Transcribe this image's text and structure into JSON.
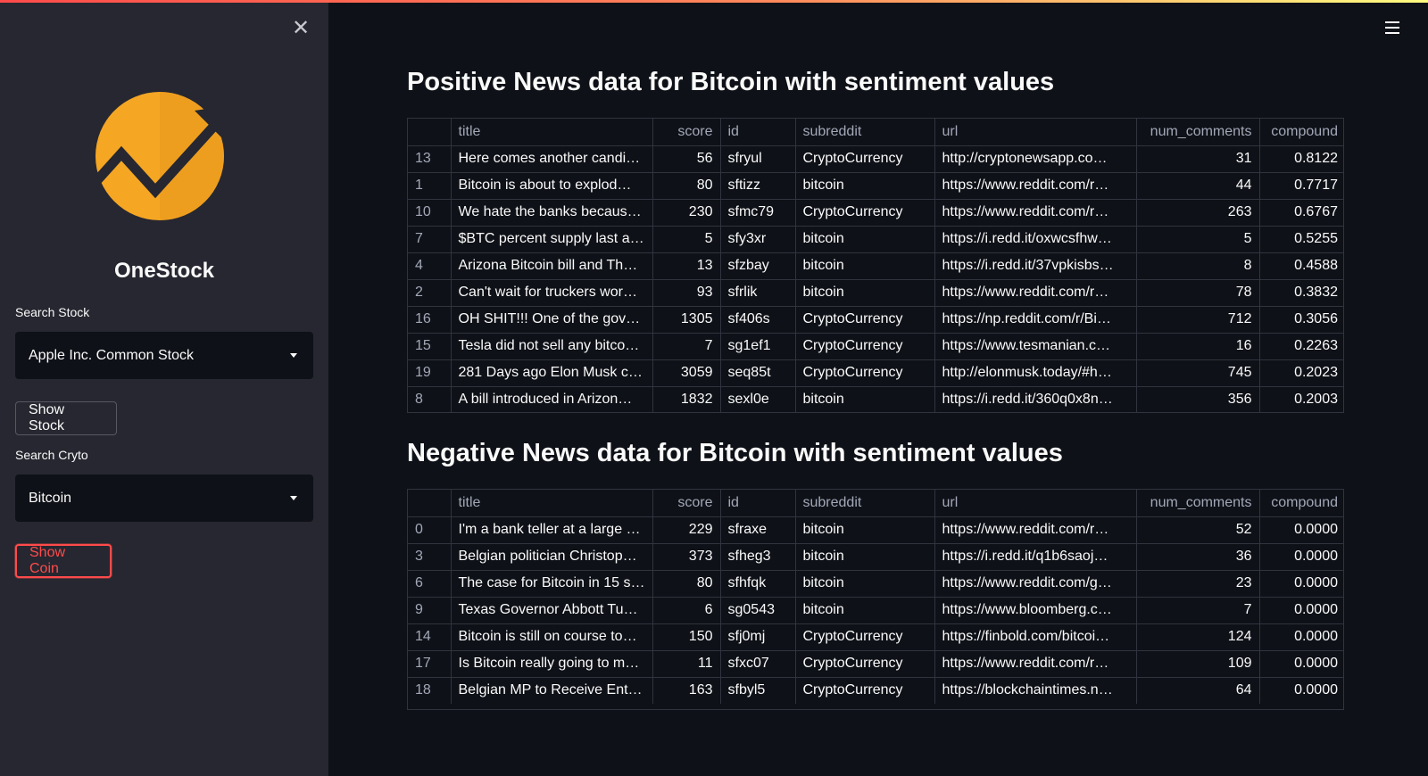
{
  "sidebar": {
    "app_title": "OneStock",
    "stock_label": "Search Stock",
    "stock_value": "Apple Inc. Common Stock",
    "show_stock_label": "Show Stock",
    "crypto_label": "Search Cryto",
    "crypto_value": "Bitcoin",
    "show_coin_label": "Show Coin",
    "close_glyph": "✕",
    "logo_colors": {
      "circle": "#f5a623",
      "arrow": "#262730"
    }
  },
  "colors": {
    "accent": "#ff4b4b",
    "background": "#0e1117",
    "sidebar": "#262730"
  },
  "positive": {
    "title": "Positive News data for Bitcoin with sentiment values",
    "columns": [
      "",
      "title",
      "score",
      "id",
      "subreddit",
      "url",
      "num_comments",
      "compound"
    ],
    "rows": [
      [
        "13",
        "Here comes another candi…",
        "56",
        "sfryul",
        "CryptoCurrency",
        "http://cryptonewsapp.co…",
        "31",
        "0.8122"
      ],
      [
        "1",
        "Bitcoin is about to explod…",
        "80",
        "sftizz",
        "bitcoin",
        "https://www.reddit.com/r…",
        "44",
        "0.7717"
      ],
      [
        "10",
        "We hate the banks becaus…",
        "230",
        "sfmc79",
        "CryptoCurrency",
        "https://www.reddit.com/r…",
        "263",
        "0.6767"
      ],
      [
        "7",
        "$BTC percent supply last a…",
        "5",
        "sfy3xr",
        "bitcoin",
        "https://i.redd.it/oxwcsfhw…",
        "5",
        "0.5255"
      ],
      [
        "4",
        "Arizona Bitcoin bill and Th…",
        "13",
        "sfzbay",
        "bitcoin",
        "https://i.redd.it/37vpkisbs…",
        "8",
        "0.4588"
      ],
      [
        "2",
        "Can't wait for truckers wor…",
        "93",
        "sfrlik",
        "bitcoin",
        "https://www.reddit.com/r…",
        "78",
        "0.3832"
      ],
      [
        "16",
        "OH SHIT!!! One of the gov…",
        "1305",
        "sf406s",
        "CryptoCurrency",
        "https://np.reddit.com/r/Bi…",
        "712",
        "0.3056"
      ],
      [
        "15",
        "Tesla did not sell any bitco…",
        "7",
        "sg1ef1",
        "CryptoCurrency",
        "https://www.tesmanian.c…",
        "16",
        "0.2263"
      ],
      [
        "19",
        "281 Days ago Elon Musk cl…",
        "3059",
        "seq85t",
        "CryptoCurrency",
        "http://elonmusk.today/#h…",
        "745",
        "0.2023"
      ],
      [
        "8",
        "A bill introduced in Arizon…",
        "1832",
        "sexl0e",
        "bitcoin",
        "https://i.redd.it/360q0x8n…",
        "356",
        "0.2003"
      ]
    ]
  },
  "negative": {
    "title": "Negative News data for Bitcoin with sentiment values",
    "columns": [
      "",
      "title",
      "score",
      "id",
      "subreddit",
      "url",
      "num_comments",
      "compound"
    ],
    "rows": [
      [
        "0",
        "I'm a bank teller at a large …",
        "229",
        "sfraxe",
        "bitcoin",
        "https://www.reddit.com/r…",
        "52",
        "0.0000"
      ],
      [
        "3",
        "Belgian politician Christop…",
        "373",
        "sfheg3",
        "bitcoin",
        "https://i.redd.it/q1b6saoj…",
        "36",
        "0.0000"
      ],
      [
        "6",
        "The case for Bitcoin in 15 s…",
        "80",
        "sfhfqk",
        "bitcoin",
        "https://www.reddit.com/g…",
        "23",
        "0.0000"
      ],
      [
        "9",
        "Texas Governor Abbott Tu…",
        "6",
        "sg0543",
        "bitcoin",
        "https://www.bloomberg.c…",
        "7",
        "0.0000"
      ],
      [
        "14",
        "Bitcoin is still on course to…",
        "150",
        "sfj0mj",
        "CryptoCurrency",
        "https://finbold.com/bitcoi…",
        "124",
        "0.0000"
      ],
      [
        "17",
        "Is Bitcoin really going to m…",
        "11",
        "sfxc07",
        "CryptoCurrency",
        "https://www.reddit.com/r…",
        "109",
        "0.0000"
      ],
      [
        "18",
        "Belgian MP to Receive Enti…",
        "163",
        "sfbyl5",
        "CryptoCurrency",
        "https://blockchaintimes.n…",
        "64",
        "0.0000"
      ]
    ]
  }
}
